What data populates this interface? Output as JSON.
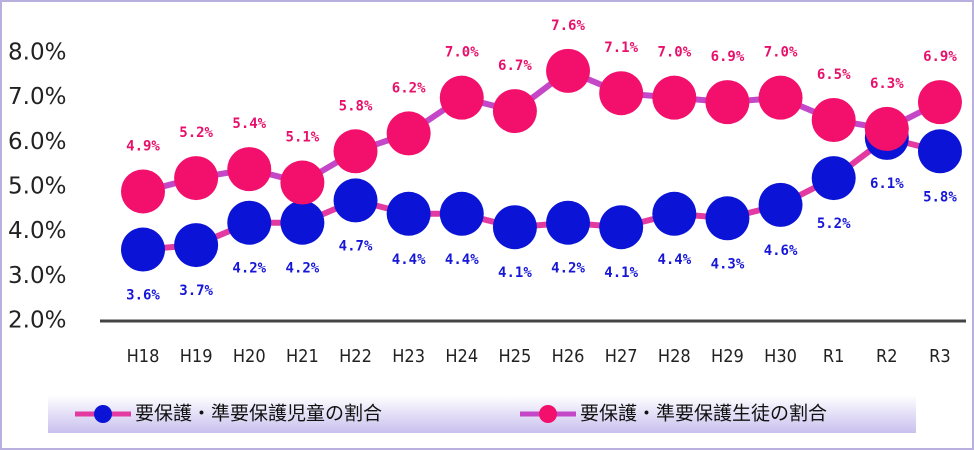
{
  "chart_data": {
    "type": "line",
    "categories": [
      "H18",
      "H19",
      "H20",
      "H21",
      "H22",
      "H23",
      "H24",
      "H25",
      "H26",
      "H27",
      "H28",
      "H29",
      "H30",
      "R1",
      "R2",
      "R3"
    ],
    "series": [
      {
        "name": "要保護・準要保護児童の割合",
        "line_color": "#e23aa0",
        "marker_color": "#0b14d6",
        "label_color": "#1616d8",
        "values": [
          3.6,
          3.7,
          4.2,
          4.2,
          4.7,
          4.4,
          4.4,
          4.1,
          4.2,
          4.1,
          4.4,
          4.3,
          4.6,
          5.2,
          6.1,
          5.8
        ],
        "value_labels": [
          "3.6%",
          "3.7%",
          "4.2%",
          "4.2%",
          "4.7%",
          "4.4%",
          "4.4%",
          "4.1%",
          "4.2%",
          "4.1%",
          "4.4%",
          "4.3%",
          "4.6%",
          "5.2%",
          "6.1%",
          "5.8%"
        ]
      },
      {
        "name": "要保護・準要保護生徒の割合",
        "line_color": "#c447c8",
        "marker_color": "#f2106c",
        "label_color": "#e8106a",
        "values": [
          4.9,
          5.2,
          5.4,
          5.1,
          5.8,
          6.2,
          7.0,
          6.7,
          7.6,
          7.1,
          7.0,
          6.9,
          7.0,
          6.5,
          6.3,
          6.9
        ],
        "value_labels": [
          "4.9%",
          "5.2%",
          "5.4%",
          "5.1%",
          "5.8%",
          "6.2%",
          "7.0%",
          "6.7%",
          "7.6%",
          "7.1%",
          "7.0%",
          "6.9%",
          "7.0%",
          "6.5%",
          "6.3%",
          "6.9%"
        ]
      }
    ],
    "ylim": [
      2,
      8
    ],
    "yticks": [
      {
        "value": 2,
        "label": "2.0%"
      },
      {
        "value": 3,
        "label": "3.0%"
      },
      {
        "value": 4,
        "label": "4.0%"
      },
      {
        "value": 5,
        "label": "5.0%"
      },
      {
        "value": 6,
        "label": "6.0%"
      },
      {
        "value": 7,
        "label": "7.0%"
      },
      {
        "value": 8,
        "label": "8.0%"
      }
    ],
    "grid": false,
    "legend": "bottom"
  }
}
